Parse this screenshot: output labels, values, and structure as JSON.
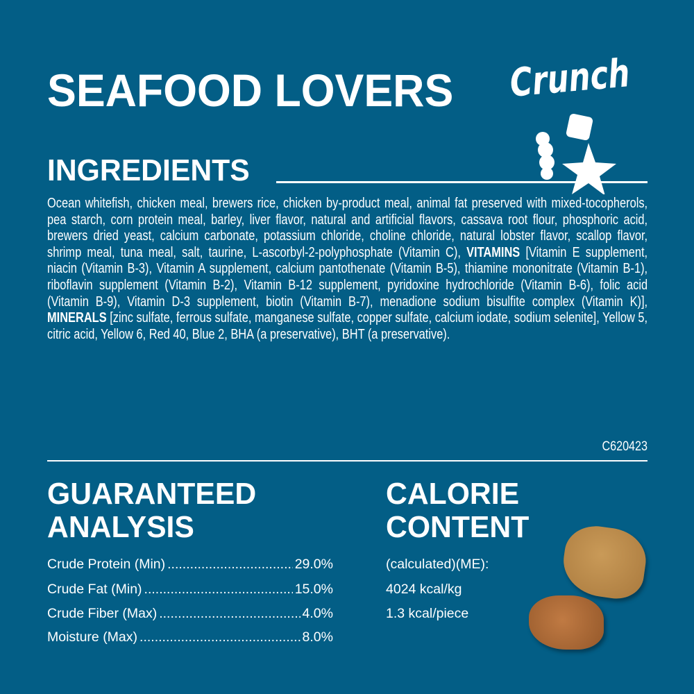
{
  "header": {
    "title": "SEAFOOD LOVERS",
    "subtitle": "Crunch"
  },
  "ingredients": {
    "heading": "INGREDIENTS",
    "segments": [
      {
        "text": "Ocean whitefish, chicken meal, brewers rice, chicken by-product meal, animal fat preserved with mixed-tocopherols, pea starch, corn protein meal, barley, liver flavor, natural and artificial flavors, cassava root flour, phosphoric acid, brewers dried yeast, calcium carbonate, potassium chloride, choline chloride, natural lobster flavor, scallop flavor, shrimp meal, tuna meal, salt, taurine, L-ascorbyl-2-polyphosphate (Vitamin C), ",
        "bold": false
      },
      {
        "text": "VITAMINS",
        "bold": true
      },
      {
        "text": " [Vitamin E supplement, niacin (Vitamin B-3), Vitamin A supplement, calcium pantothenate (Vitamin B-5), thiamine mononitrate (Vitamin B-1), riboflavin supplement (Vitamin B-2), Vitamin B-12 supplement, pyridoxine hydrochloride (Vitamin B-6), folic acid (Vitamin B-9), Vitamin D-3 supplement, biotin (Vitamin B-7), menadione sodium bisulfite complex (Vitamin K)], ",
        "bold": false
      },
      {
        "text": "MINERALS",
        "bold": true
      },
      {
        "text": " [zinc sulfate, ferrous sulfate, manganese sulfate, copper sulfate, calcium iodate, sodium selenite], Yellow 5, citric acid, Yellow 6, Red 40, Blue 2, BHA (a preservative), BHT (a preservative).",
        "bold": false
      }
    ],
    "code": "C620423"
  },
  "guaranteed_analysis": {
    "heading_line1": "GUARANTEED",
    "heading_line2": "ANALYSIS",
    "rows": [
      {
        "label": "Crude Protein (Min)",
        "value": "29.0%"
      },
      {
        "label": "Crude Fat (Min)",
        "value": "15.0%"
      },
      {
        "label": "Crude Fiber (Max)",
        "value": "4.0%"
      },
      {
        "label": "Moisture (Max)",
        "value": "8.0%"
      }
    ]
  },
  "calorie_content": {
    "heading_line1": "CALORIE",
    "heading_line2": "CONTENT",
    "lines": [
      "(calculated)(ME):",
      "4024 kcal/kg",
      "1.3 kcal/piece"
    ]
  },
  "colors": {
    "background": "#035e86",
    "text": "#ffffff",
    "kibble_light": "#b8884a",
    "kibble_dark": "#a86a35"
  }
}
